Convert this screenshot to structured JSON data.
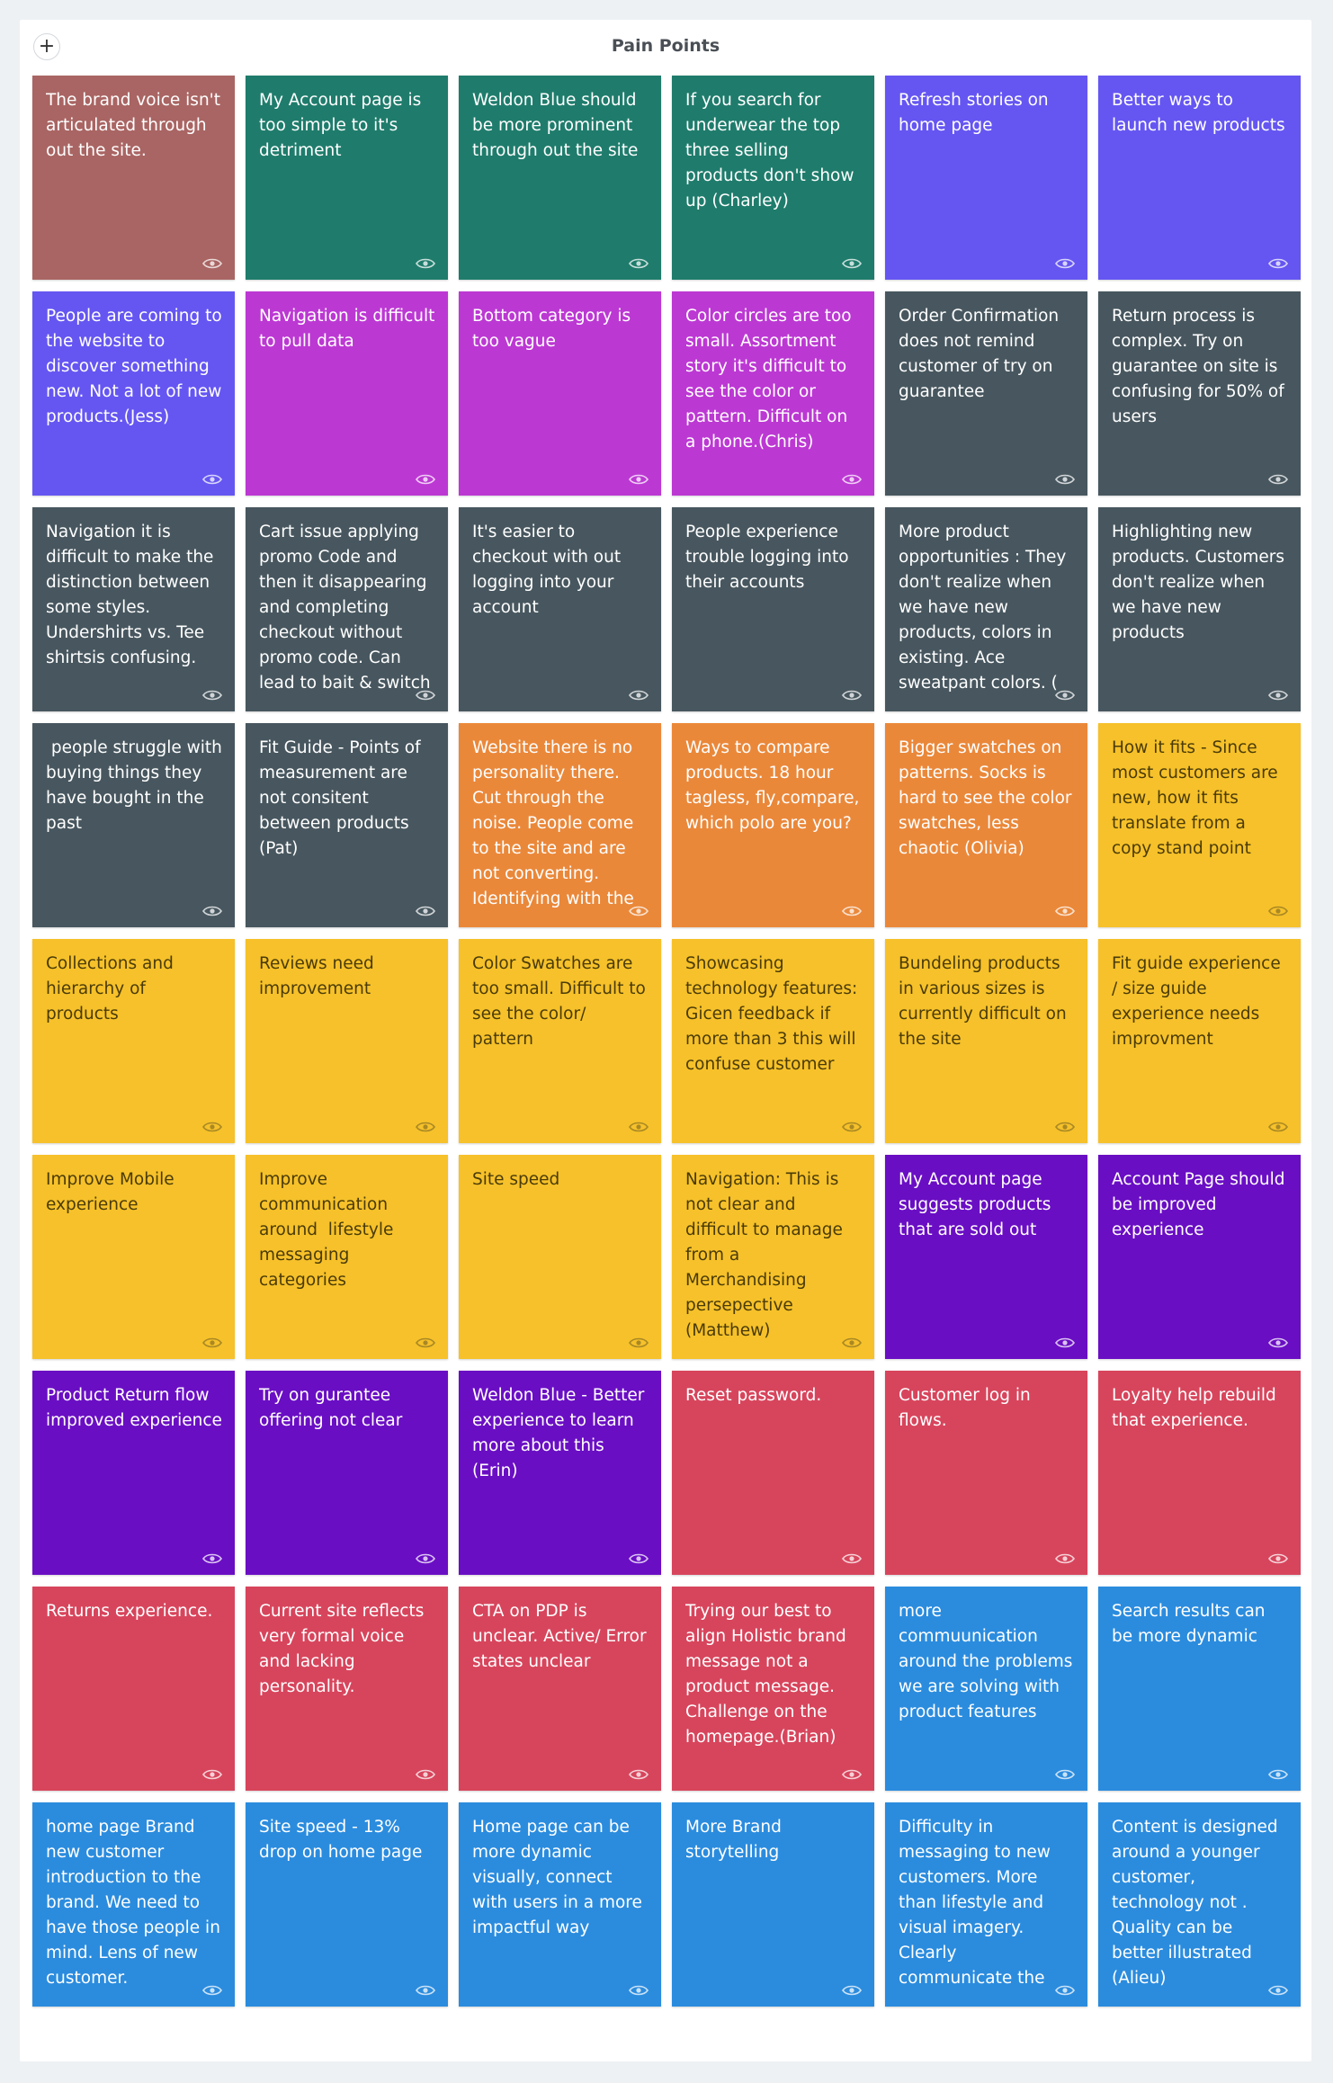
{
  "board": {
    "title": "Pain Points",
    "add_label": "+"
  },
  "colors": {
    "rosewood": "#a96563",
    "teal": "#1f7c6c",
    "indigo": "#6556f2",
    "magenta": "#bc38d3",
    "slate": "#48575f",
    "orange": "#ea883a",
    "yellow": "#f6c12a",
    "purple": "#6a0ec4",
    "red": "#d7455c",
    "blue": "#2b8cde"
  },
  "cards": [
    {
      "text": "The brand voice isn't articulated through out the site.",
      "color": "rosewood"
    },
    {
      "text": "My Account page is too simple to it's detriment",
      "color": "teal"
    },
    {
      "text": "Weldon Blue should be more prominent through out the site",
      "color": "teal"
    },
    {
      "text": "If you search for underwear the top three selling products don't show up (Charley)",
      "color": "teal"
    },
    {
      "text": "Refresh stories on home page",
      "color": "indigo"
    },
    {
      "text": "Better ways to launch new products",
      "color": "indigo"
    },
    {
      "text": "People are coming to the website to discover something new. Not a lot of new products.(Jess)",
      "color": "indigo"
    },
    {
      "text": "Navigation is difficult to pull data",
      "color": "magenta"
    },
    {
      "text": "Bottom category is too vague",
      "color": "magenta"
    },
    {
      "text": "Color circles are too small. Assortment story it's difficult to see the color or pattern. Difficult on a phone.(Chris)",
      "color": "magenta"
    },
    {
      "text": "Order Confirmation does not remind customer of try on guarantee",
      "color": "slate"
    },
    {
      "text": "Return process is complex. Try on guarantee on site is confusing for 50% of users",
      "color": "slate"
    },
    {
      "text": "Navigation it is difficult to make the distinction between some styles. Undershirts vs. Tee shirtsis confusing.",
      "color": "slate"
    },
    {
      "text": "Cart issue applying promo Code and then it disappearing and completing checkout without promo code. Can lead to bait & switch feeling",
      "color": "slate"
    },
    {
      "text": "It's easier to checkout with out logging into your account",
      "color": "slate"
    },
    {
      "text": "People experience trouble logging into their accounts",
      "color": "slate"
    },
    {
      "text": "More product opportunities : They don't realize when we have new products, colors in existing. Ace sweatpant colors. (",
      "color": "slate"
    },
    {
      "text": "Highlighting new products. Customers don't realize when we have new products",
      "color": "slate"
    },
    {
      "text": " people struggle with buying things they have bought in the past",
      "color": "slate"
    },
    {
      "text": "Fit Guide - Points of measurement are not consitent between products (Pat)",
      "color": "slate"
    },
    {
      "text": "Website there is no personality there. Cut through the noise. People come to the site and are not converting. Identifying with the",
      "color": "orange"
    },
    {
      "text": "Ways to compare products. 18 hour tagless, fly,compare, which polo are you?",
      "color": "orange"
    },
    {
      "text": "Bigger swatches on patterns. Socks is hard to see the color swatches, less chaotic (Olivia)",
      "color": "orange"
    },
    {
      "text": "How it fits - Since most customers are new, how it fits translate from a copy stand point",
      "color": "yellow"
    },
    {
      "text": "Collections and hierarchy of products",
      "color": "yellow"
    },
    {
      "text": "Reviews need improvement",
      "color": "yellow"
    },
    {
      "text": "Color Swatches are too small. Difficult to see the color/ pattern",
      "color": "yellow"
    },
    {
      "text": "Showcasing technology features: Gicen feedback if more than 3 this will confuse customer",
      "color": "yellow"
    },
    {
      "text": "Bundeling products in various sizes is currently difficult on the site",
      "color": "yellow"
    },
    {
      "text": "Fit guide experience / size guide experience needs improvment",
      "color": "yellow"
    },
    {
      "text": "Improve Mobile experience",
      "color": "yellow"
    },
    {
      "text": "Improve communication around  lifestyle messaging categories",
      "color": "yellow"
    },
    {
      "text": "Site speed",
      "color": "yellow"
    },
    {
      "text": "Navigation: This is not clear and difficult to manage from a Merchandising persepective (Matthew)",
      "color": "yellow"
    },
    {
      "text": "My Account page suggests products that are sold out",
      "color": "purple"
    },
    {
      "text": "Account Page should be improved experience",
      "color": "purple"
    },
    {
      "text": "Product Return flow improved experience",
      "color": "purple"
    },
    {
      "text": "Try on gurantee offering not clear",
      "color": "purple"
    },
    {
      "text": "Weldon Blue - Better experience to learn more about this (Erin)",
      "color": "purple"
    },
    {
      "text": "Reset password.",
      "color": "red"
    },
    {
      "text": "Customer log in flows.",
      "color": "red"
    },
    {
      "text": "Loyalty help rebuild that experience.",
      "color": "red"
    },
    {
      "text": "Returns experience.",
      "color": "red"
    },
    {
      "text": "Current site reflects very formal voice and lacking personality.",
      "color": "red"
    },
    {
      "text": "CTA on PDP is unclear. Active/ Error states unclear",
      "color": "red"
    },
    {
      "text": "Trying our best to align Holistic brand message not a product message. Challenge on the homepage.(Brian)",
      "color": "red"
    },
    {
      "text": "more commuunication around the problems we are solving with product features",
      "color": "blue"
    },
    {
      "text": "Search results can be more dynamic",
      "color": "blue"
    },
    {
      "text": "home page Brand new customer introduction to the brand. We need to have those people in mind. Lens of new customer.",
      "color": "blue"
    },
    {
      "text": "Site speed - 13% drop on home page",
      "color": "blue"
    },
    {
      "text": "Home page can be more dynamic visually, connect with users in a more impactful way",
      "color": "blue"
    },
    {
      "text": "More Brand storytelling",
      "color": "blue"
    },
    {
      "text": "Difficulty in messaging to new customers. More than lifestyle and visual imagery. Clearly communicate the problem we are",
      "color": "blue"
    },
    {
      "text": "Content is designed around a younger customer, technology not . Quality can be better illustrated (Alieu)",
      "color": "blue"
    }
  ]
}
